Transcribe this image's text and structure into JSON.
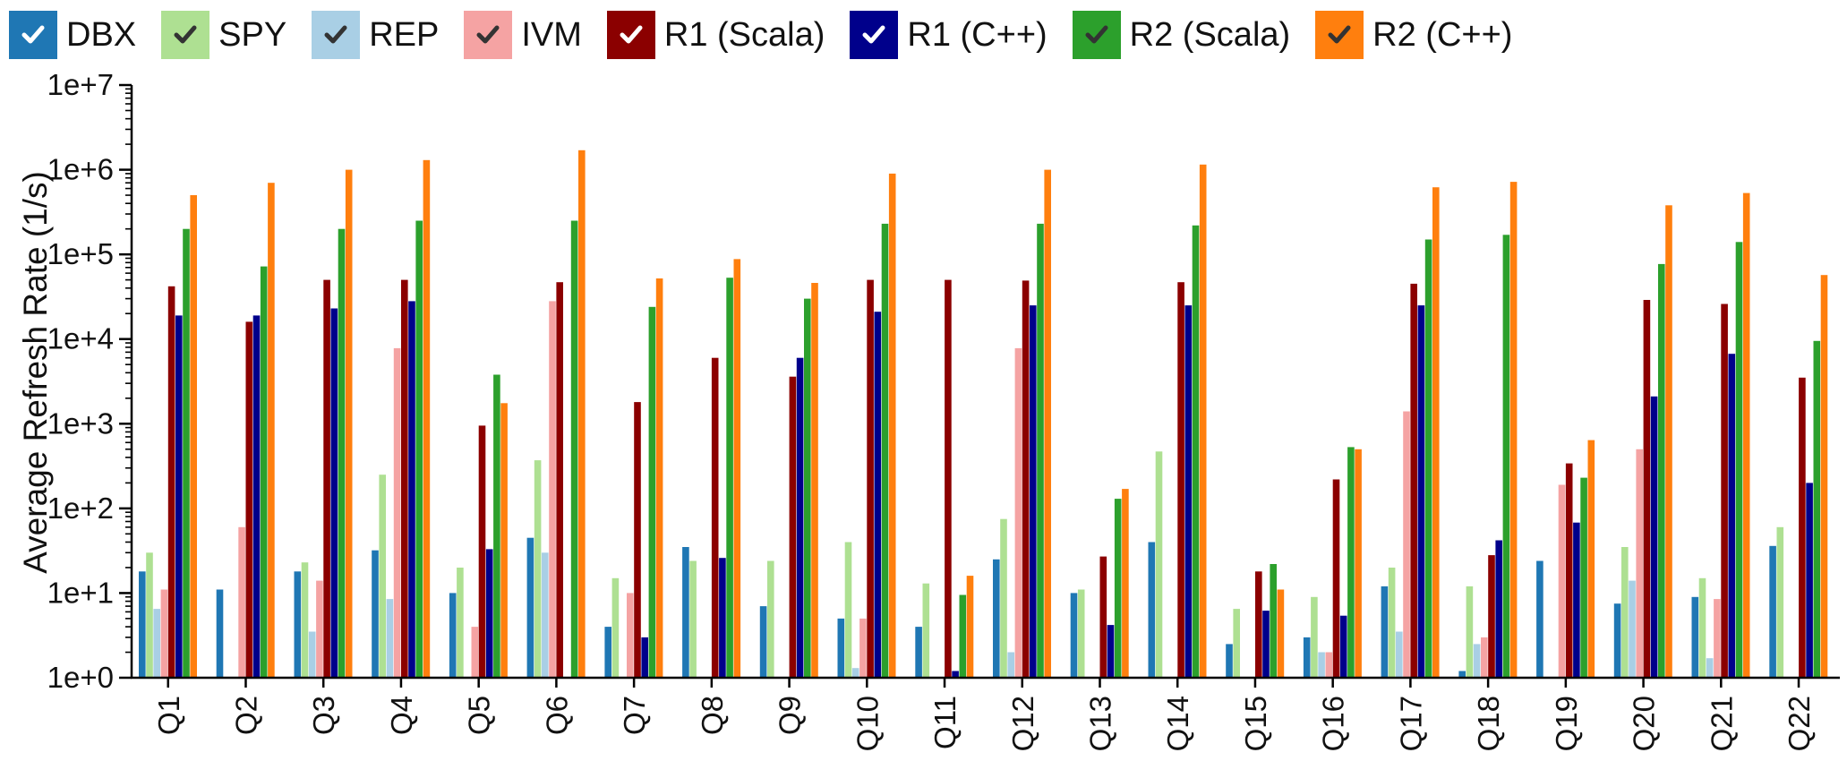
{
  "chart_data": {
    "type": "bar",
    "title": "",
    "xlabel": "",
    "ylabel": "Average Refresh Rate (1/s)",
    "yscale": "log",
    "ylim": [
      1,
      10000000
    ],
    "yticks": [
      "1e+0",
      "1e+1",
      "1e+2",
      "1e+3",
      "1e+4",
      "1e+5",
      "1e+6",
      "1e+7"
    ],
    "legend_position": "top",
    "grid": false,
    "categories": [
      "Q1",
      "Q2",
      "Q3",
      "Q4",
      "Q5",
      "Q6",
      "Q7",
      "Q8",
      "Q9",
      "Q10",
      "Q11",
      "Q12",
      "Q13",
      "Q14",
      "Q15",
      "Q16",
      "Q17",
      "Q18",
      "Q19",
      "Q20",
      "Q21",
      "Q22"
    ],
    "series": [
      {
        "name": "DBX",
        "color": "#1f77b4",
        "check_color": "#ffffff",
        "values": [
          18,
          11,
          18,
          32,
          10,
          45,
          4,
          35,
          7,
          5,
          4,
          25,
          10,
          40,
          2.5,
          3,
          12,
          1.2,
          24,
          7.5,
          9,
          36
        ]
      },
      {
        "name": "SPY",
        "color": "#aee092",
        "check_color": "#333333",
        "values": [
          30,
          1,
          23,
          250,
          20,
          370,
          15,
          24,
          24,
          40,
          13,
          75,
          11,
          470,
          6.5,
          9,
          20,
          12,
          1,
          35,
          15,
          60
        ]
      },
      {
        "name": "REP",
        "color": "#a9cfe5",
        "check_color": "#333333",
        "values": [
          6.5,
          1,
          3.5,
          8.5,
          1,
          30,
          1,
          1,
          1,
          1.3,
          1,
          2,
          1,
          1,
          1,
          2,
          3.5,
          2.5,
          1,
          14,
          1.7,
          1
        ]
      },
      {
        "name": "IVM",
        "color": "#f5a3a3",
        "check_color": "#333333",
        "values": [
          11,
          60,
          14,
          7800,
          4,
          28000,
          10,
          1,
          1,
          5,
          1,
          7800,
          1,
          1,
          1,
          2,
          1400,
          3,
          190,
          500,
          8.5,
          1
        ]
      },
      {
        "name": "R1 (Scala)",
        "color": "#8b0000",
        "check_color": "#ffffff",
        "values": [
          42000,
          16000,
          50000,
          50000,
          950,
          47000,
          1800,
          6000,
          3600,
          50000,
          50000,
          49000,
          27,
          47000,
          18,
          220,
          45000,
          28,
          340,
          29000,
          26000,
          3500
        ]
      },
      {
        "name": "R1 (C++)",
        "color": "#00008b",
        "check_color": "#ffffff",
        "values": [
          19000,
          19000,
          23000,
          28000,
          33,
          1,
          3,
          26,
          6000,
          21000,
          1.2,
          25000,
          4.2,
          25000,
          6.2,
          5.4,
          25000,
          42,
          68,
          2100,
          6700,
          200
        ]
      },
      {
        "name": "R2 (Scala)",
        "color": "#2ca02c",
        "check_color": "#333333",
        "values": [
          200000,
          72000,
          200000,
          250000,
          3800,
          250000,
          24000,
          53000,
          30000,
          230000,
          9.5,
          230000,
          130,
          220000,
          22,
          530,
          150000,
          170000,
          230,
          77000,
          140000,
          9500
        ]
      },
      {
        "name": "R2 (C++)",
        "color": "#ff7f0e",
        "check_color": "#333333",
        "values": [
          500000,
          700000,
          1000000,
          1300000,
          1750,
          1700000,
          52000,
          88000,
          46000,
          900000,
          16,
          1000000,
          170,
          1150000,
          11,
          500,
          620000,
          720000,
          640,
          380000,
          530000,
          57000
        ]
      }
    ]
  }
}
